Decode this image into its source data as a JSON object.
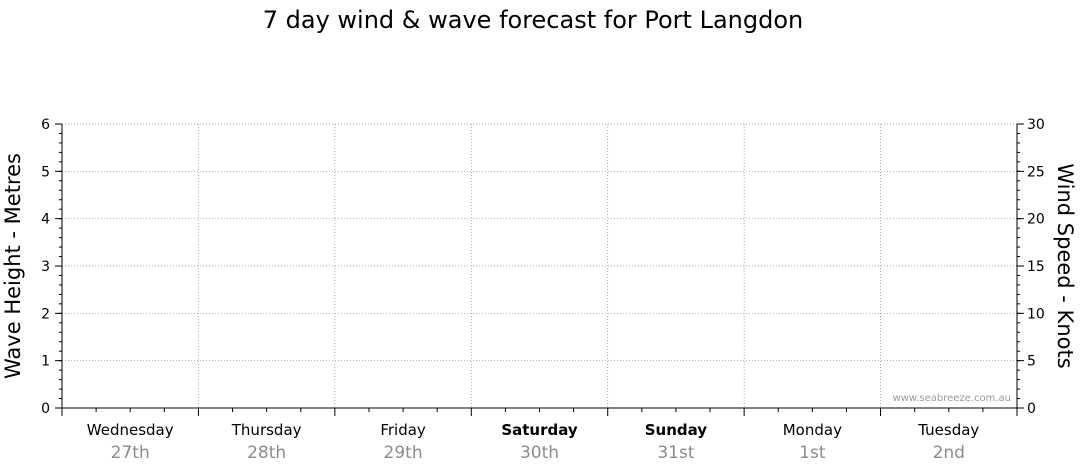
{
  "chart_data": {
    "type": "line",
    "title": "7 day wind & wave forecast for Port Langdon",
    "y_left": {
      "label": "Wave Height - Metres",
      "range": [
        0,
        6
      ],
      "ticks": [
        0,
        1,
        2,
        3,
        4,
        5,
        6
      ]
    },
    "y_right": {
      "label": "Wind Speed - Knots",
      "range": [
        0,
        30
      ],
      "ticks": [
        0,
        5,
        10,
        15,
        20,
        25,
        30
      ]
    },
    "grid": true,
    "days": [
      {
        "name": "Wednesday",
        "date": "27th",
        "bold": false
      },
      {
        "name": "Thursday",
        "date": "28th",
        "bold": false
      },
      {
        "name": "Friday",
        "date": "29th",
        "bold": false
      },
      {
        "name": "Saturday",
        "date": "30th",
        "bold": true
      },
      {
        "name": "Sunday",
        "date": "31st",
        "bold": true
      },
      {
        "name": "Monday",
        "date": "1st",
        "bold": false
      },
      {
        "name": "Tuesday",
        "date": "2nd",
        "bold": false
      }
    ],
    "series": []
  },
  "watermark": "www.seabreeze.com.au",
  "colors": {
    "grid": "#8a8a8a",
    "axis": "#000000",
    "date_text": "#8c8c8c",
    "watermark": "#9a9a9a"
  }
}
